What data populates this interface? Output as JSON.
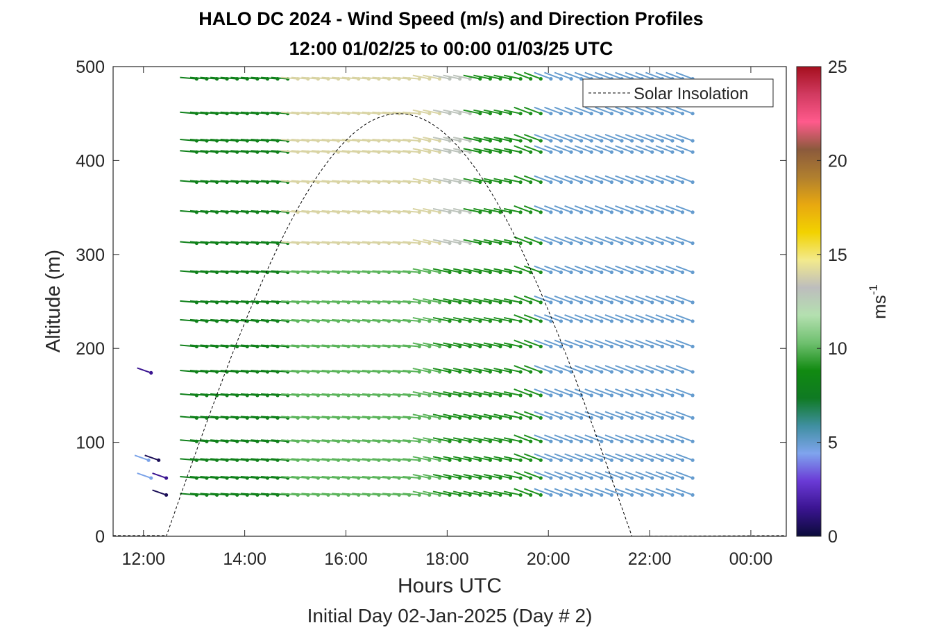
{
  "chart_data": {
    "type": "scatter",
    "title": "HALO DC 2024 - Wind Speed (m/s) and Direction Profiles",
    "subtitle": "12:00 01/02/25 to 00:00 01/03/25  UTC",
    "xlabel": "Hours UTC",
    "xlabel2": "Initial Day 02-Jan-2025 (Day # 2)",
    "ylabel": "Altitude (m)",
    "xlim": [
      11.4,
      24.7
    ],
    "ylim": [
      0,
      500
    ],
    "x_ticks": [
      12,
      14,
      16,
      18,
      20,
      22,
      24
    ],
    "x_tick_labels": [
      "12:00",
      "14:00",
      "16:00",
      "18:00",
      "20:00",
      "22:00",
      "00:00"
    ],
    "y_ticks": [
      0,
      100,
      200,
      300,
      400,
      500
    ],
    "y_tick_labels": [
      "0",
      "100",
      "200",
      "300",
      "400",
      "500"
    ],
    "legend": {
      "label": "Solar Insolation",
      "position": "top-right"
    },
    "colorbar": {
      "label": "ms",
      "label_sup": "-1",
      "range": [
        0,
        25
      ],
      "tick_values": [
        0,
        5,
        10,
        15,
        20,
        25
      ],
      "tick_labels": [
        "0",
        "5",
        "10",
        "15",
        "20",
        "25"
      ],
      "colors": [
        "#0b0b3a",
        "#3a1490",
        "#6a3ad6",
        "#7fa4ee",
        "#3f8fa0",
        "#0f7a23",
        "#118a11",
        "#6fc06f",
        "#b4e0b0",
        "#bdbdbd",
        "#f3ea8c",
        "#f2d200",
        "#e8a810",
        "#b07f2f",
        "#8b5a3c",
        "#ff5a8c",
        "#d13a60",
        "#a50f1e"
      ]
    },
    "solar_insolation": {
      "start_hour": 12.45,
      "peak_hour": 17.05,
      "end_hour": 21.65,
      "peak_altitude": 450
    },
    "wind_time_range": [
      13.05,
      22.85
    ],
    "wind_time_step": 0.2,
    "altitude_levels": [
      44,
      62,
      81,
      101,
      126,
      150,
      175,
      202,
      229,
      249,
      281,
      312,
      345,
      377,
      409,
      421,
      450,
      487
    ],
    "wind_speed_by_band_ms": [
      {
        "time_range": [
          13.0,
          15.0
        ],
        "speed_ms": 8
      },
      {
        "time_range": [
          15.0,
          18.0
        ],
        "speed_ms": 10
      },
      {
        "time_range": [
          18.0,
          20.0
        ],
        "speed_ms": 9
      },
      {
        "time_range": [
          20.0,
          22.9
        ],
        "speed_ms": 5
      }
    ],
    "early_isolated_vectors": [
      {
        "hour": 12.15,
        "altitude": 174,
        "speed_ms": 1.5
      },
      {
        "hour": 12.1,
        "altitude": 81,
        "speed_ms": 4.5
      },
      {
        "hour": 12.3,
        "altitude": 81,
        "speed_ms": 0.5
      },
      {
        "hour": 12.15,
        "altitude": 62,
        "speed_ms": 4.5
      },
      {
        "hour": 12.45,
        "altitude": 62,
        "speed_ms": 1.5
      },
      {
        "hour": 12.45,
        "altitude": 44,
        "speed_ms": 0.5
      }
    ]
  }
}
